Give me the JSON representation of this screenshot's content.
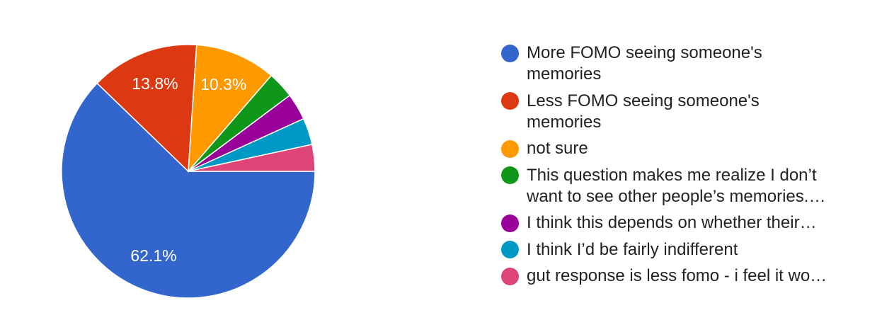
{
  "chart_data": {
    "type": "pie",
    "categories": [
      "More FOMO seeing someone's memories",
      "Less FOMO seeing someone's memories",
      "not sure",
      "This question makes me realize I don’t want to see other people’s memories.…",
      "I think this depends on whether their…",
      "I think I’d be fairly indifferent",
      "gut response is less fomo - i feel it wo…"
    ],
    "values": [
      62.1,
      13.8,
      10.3,
      3.4,
      3.4,
      3.4,
      3.4
    ],
    "value_labels": [
      "62.1%",
      "13.8%",
      "10.3%",
      null,
      null,
      null,
      null
    ],
    "colors": [
      "#3366cc",
      "#dc3912",
      "#ff9900",
      "#109618",
      "#990099",
      "#0099c6",
      "#dd4477"
    ]
  }
}
